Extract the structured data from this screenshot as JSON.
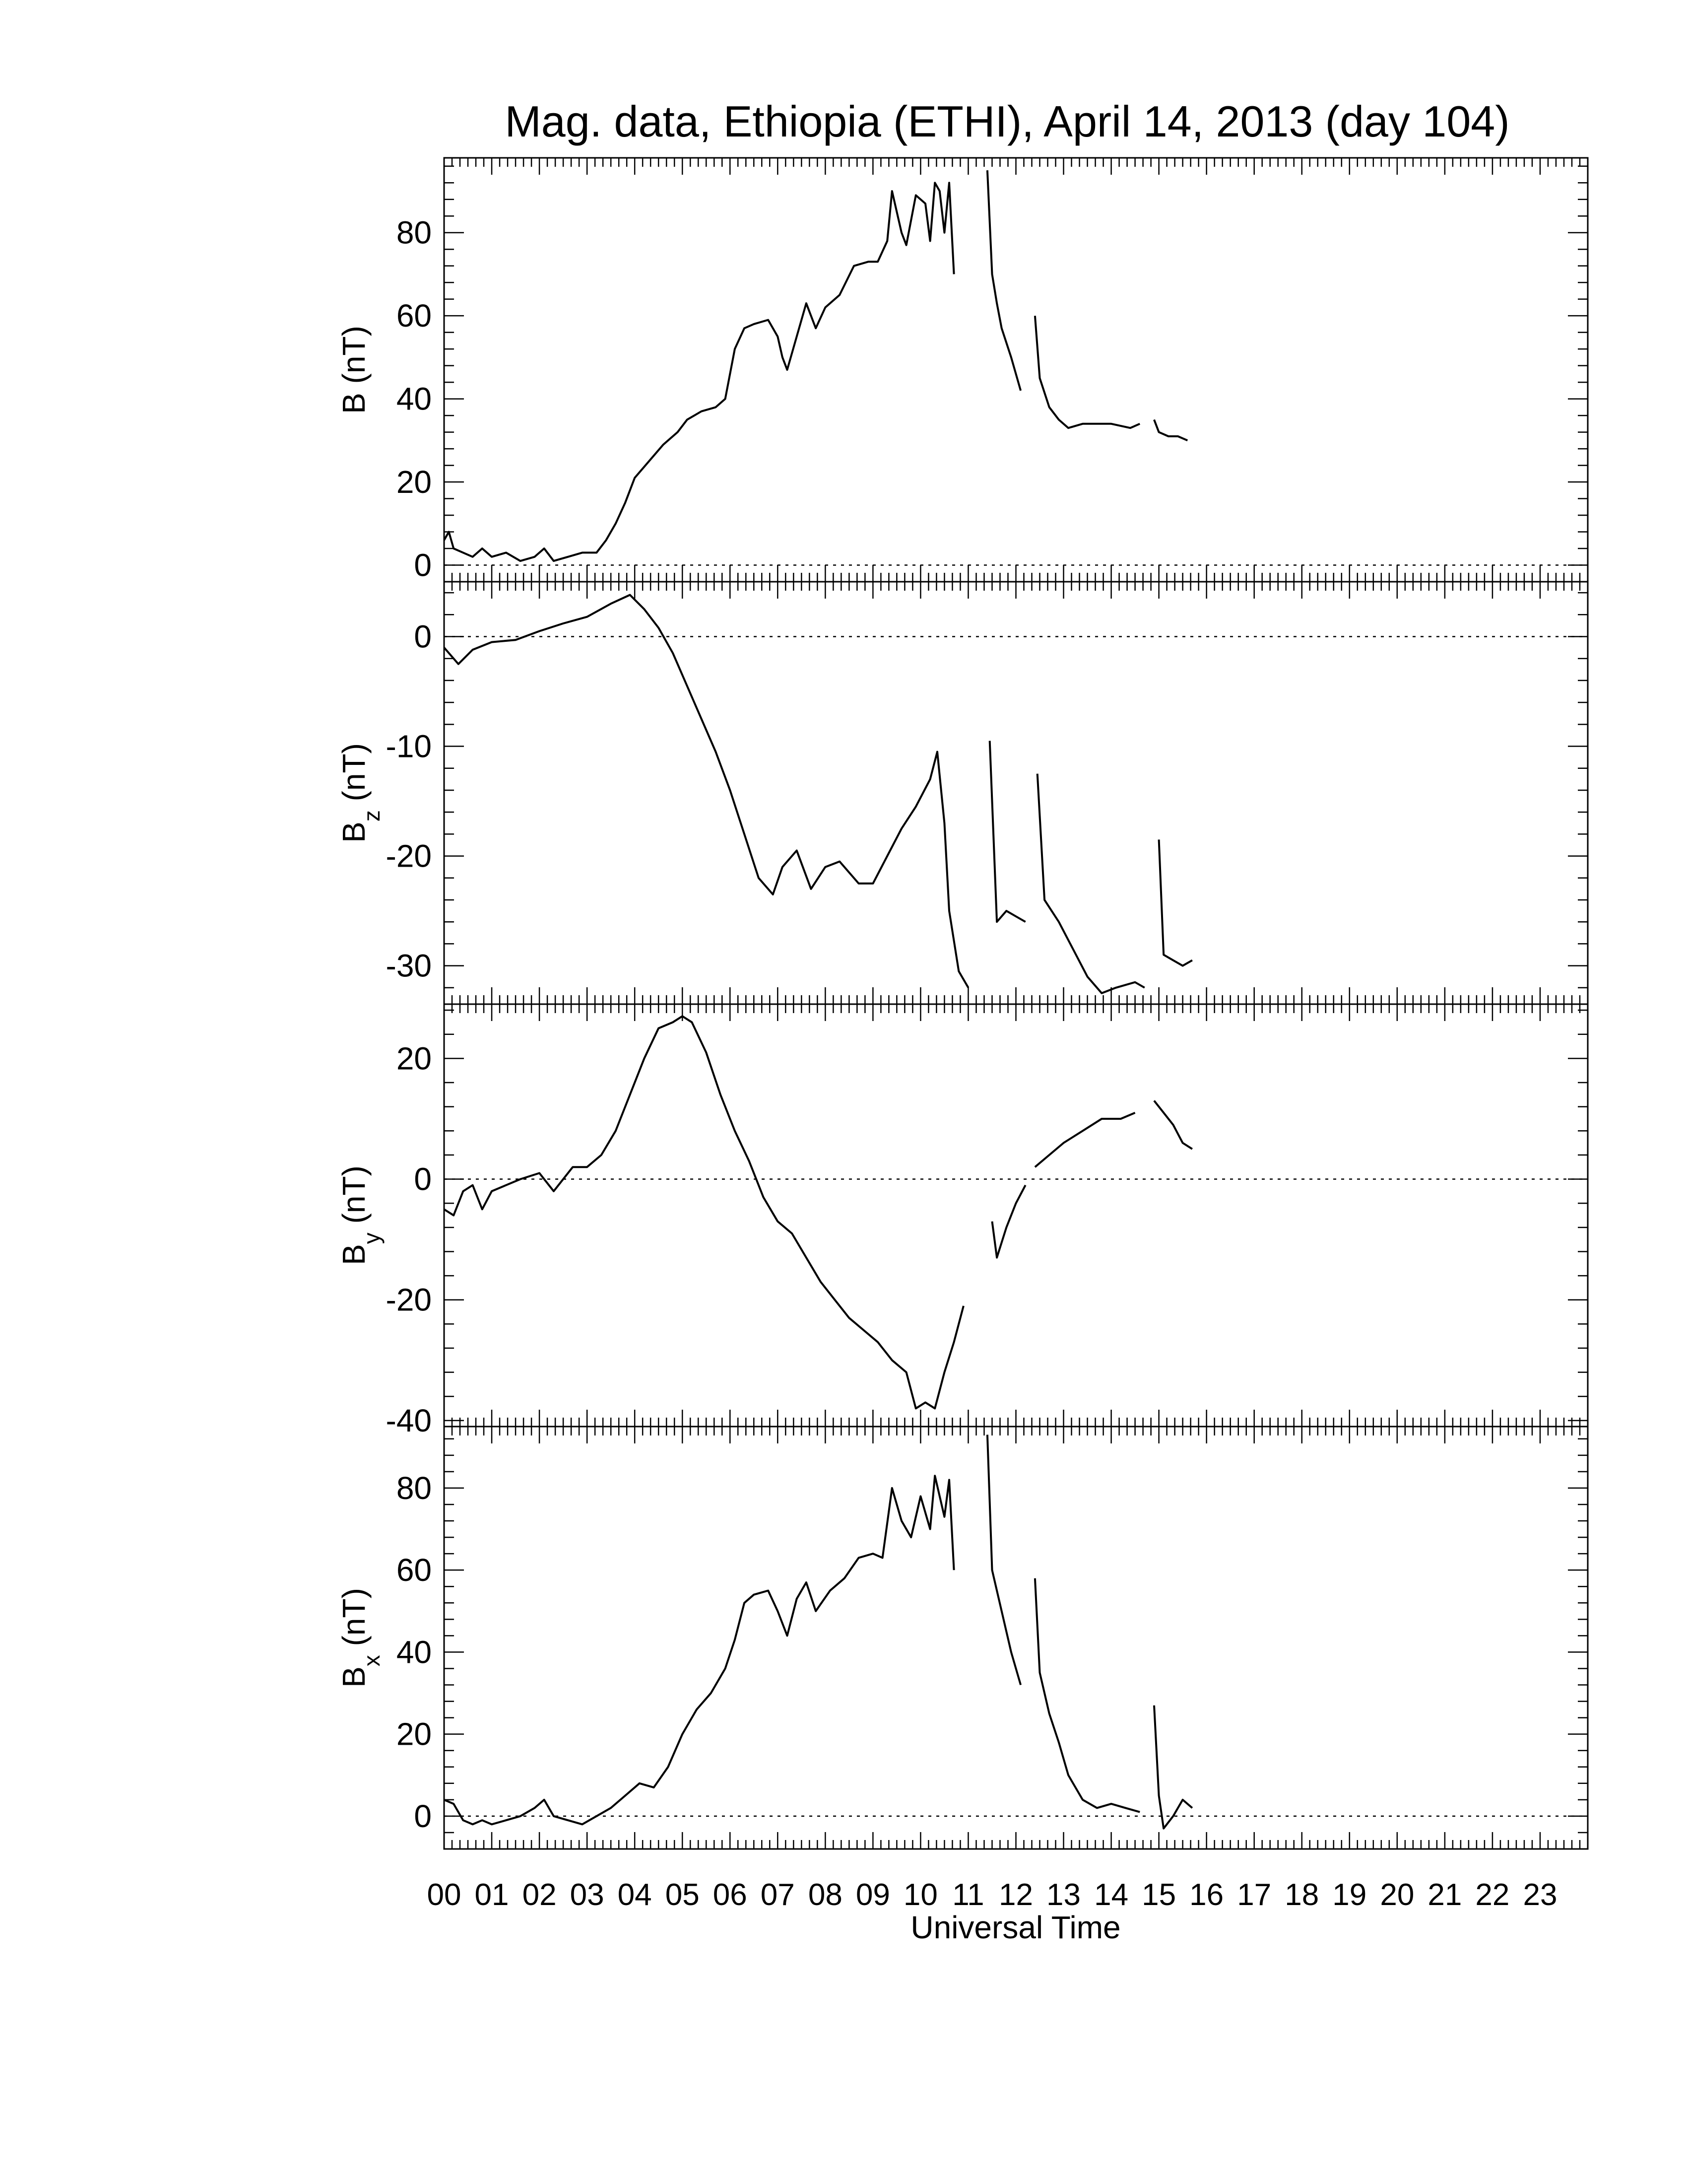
{
  "title": "Mag. data, Ethiopia (ETHI), April 14, 2013 (day 104)",
  "colors": {
    "line": "#000000",
    "zero_line": "#000000",
    "background": "#ffffff"
  },
  "chart_data": [
    {
      "type": "line",
      "panel": "B",
      "ylabel_main": "B",
      "ylabel_sub": "",
      "ylabel_unit": "(nT)",
      "ylim": [
        -4,
        98
      ],
      "yticks": [
        0,
        20,
        40,
        60,
        80
      ],
      "xlim": [
        0,
        24
      ],
      "zero_line": true,
      "segments": [
        [
          [
            0.0,
            6
          ],
          [
            0.1,
            8
          ],
          [
            0.2,
            4
          ],
          [
            0.4,
            3
          ],
          [
            0.6,
            2
          ],
          [
            0.8,
            4
          ],
          [
            1.0,
            2
          ],
          [
            1.3,
            3
          ],
          [
            1.6,
            1
          ],
          [
            1.9,
            2
          ],
          [
            2.1,
            4
          ],
          [
            2.3,
            1
          ],
          [
            2.6,
            2
          ],
          [
            2.9,
            3
          ],
          [
            3.2,
            3
          ],
          [
            3.4,
            6
          ],
          [
            3.6,
            10
          ],
          [
            3.8,
            15
          ],
          [
            4.0,
            21
          ],
          [
            4.3,
            25
          ],
          [
            4.6,
            29
          ],
          [
            4.9,
            32
          ],
          [
            5.1,
            35
          ],
          [
            5.4,
            37
          ],
          [
            5.7,
            38
          ],
          [
            5.9,
            40
          ],
          [
            6.1,
            52
          ],
          [
            6.3,
            57
          ],
          [
            6.5,
            58
          ],
          [
            6.8,
            59
          ],
          [
            7.0,
            55
          ],
          [
            7.1,
            50
          ],
          [
            7.2,
            47
          ],
          [
            7.4,
            55
          ],
          [
            7.6,
            63
          ],
          [
            7.8,
            57
          ],
          [
            8.0,
            62
          ],
          [
            8.3,
            65
          ],
          [
            8.6,
            72
          ],
          [
            8.9,
            73
          ],
          [
            9.1,
            73
          ],
          [
            9.3,
            78
          ],
          [
            9.4,
            90
          ],
          [
            9.6,
            80
          ],
          [
            9.7,
            77
          ],
          [
            9.9,
            89
          ],
          [
            10.1,
            87
          ],
          [
            10.2,
            78
          ],
          [
            10.3,
            92
          ],
          [
            10.4,
            90
          ],
          [
            10.5,
            80
          ],
          [
            10.6,
            92
          ],
          [
            10.7,
            70
          ]
        ],
        [
          [
            11.4,
            95
          ],
          [
            11.5,
            70
          ],
          [
            11.6,
            63
          ],
          [
            11.7,
            57
          ],
          [
            11.9,
            50
          ],
          [
            12.1,
            42
          ]
        ],
        [
          [
            12.4,
            60
          ],
          [
            12.5,
            45
          ],
          [
            12.7,
            38
          ],
          [
            12.9,
            35
          ],
          [
            13.1,
            33
          ],
          [
            13.4,
            34
          ],
          [
            13.7,
            34
          ],
          [
            14.0,
            34
          ],
          [
            14.4,
            33
          ],
          [
            14.6,
            34
          ]
        ],
        [
          [
            14.9,
            35
          ],
          [
            15.0,
            32
          ],
          [
            15.2,
            31
          ],
          [
            15.4,
            31
          ],
          [
            15.6,
            30
          ]
        ]
      ]
    },
    {
      "type": "line",
      "panel": "Bz",
      "ylabel_main": "B",
      "ylabel_sub": "z",
      "ylabel_unit": "(nT)",
      "ylim": [
        -33.5,
        5
      ],
      "yticks": [
        0,
        -10,
        -20,
        -30
      ],
      "xlim": [
        0,
        24
      ],
      "zero_line": true,
      "segments": [
        [
          [
            0.0,
            -1
          ],
          [
            0.3,
            -2.5
          ],
          [
            0.6,
            -1.2
          ],
          [
            1.0,
            -0.5
          ],
          [
            1.5,
            -0.3
          ],
          [
            2.0,
            0.5
          ],
          [
            2.5,
            1.2
          ],
          [
            3.0,
            1.8
          ],
          [
            3.5,
            3.0
          ],
          [
            3.9,
            3.8
          ],
          [
            4.2,
            2.5
          ],
          [
            4.5,
            0.8
          ],
          [
            4.8,
            -1.5
          ],
          [
            5.1,
            -4.5
          ],
          [
            5.4,
            -7.5
          ],
          [
            5.7,
            -10.5
          ],
          [
            6.0,
            -14
          ],
          [
            6.3,
            -18
          ],
          [
            6.6,
            -22
          ],
          [
            6.9,
            -23.5
          ],
          [
            7.1,
            -21
          ],
          [
            7.4,
            -19.5
          ],
          [
            7.7,
            -23
          ],
          [
            8.0,
            -21
          ],
          [
            8.3,
            -20.5
          ],
          [
            8.7,
            -22.5
          ],
          [
            9.0,
            -22.5
          ],
          [
            9.3,
            -20
          ],
          [
            9.6,
            -17.5
          ],
          [
            9.9,
            -15.5
          ],
          [
            10.2,
            -13
          ],
          [
            10.35,
            -10.5
          ],
          [
            10.5,
            -17
          ],
          [
            10.6,
            -25
          ],
          [
            10.8,
            -30.5
          ],
          [
            11.0,
            -32
          ]
        ],
        [
          [
            11.45,
            -9.5
          ],
          [
            11.6,
            -26
          ],
          [
            11.8,
            -25
          ],
          [
            12.0,
            -25.5
          ],
          [
            12.2,
            -26
          ]
        ],
        [
          [
            12.45,
            -12.5
          ],
          [
            12.6,
            -24
          ],
          [
            12.9,
            -26
          ],
          [
            13.2,
            -28.5
          ],
          [
            13.5,
            -31
          ],
          [
            13.8,
            -32.5
          ],
          [
            14.1,
            -32
          ],
          [
            14.5,
            -31.5
          ],
          [
            14.7,
            -32
          ]
        ],
        [
          [
            15.0,
            -18.5
          ],
          [
            15.1,
            -29
          ],
          [
            15.3,
            -29.5
          ],
          [
            15.5,
            -30
          ],
          [
            15.7,
            -29.5
          ]
        ]
      ]
    },
    {
      "type": "line",
      "panel": "By",
      "ylabel_main": "B",
      "ylabel_sub": "y",
      "ylabel_unit": "(nT)",
      "ylim": [
        -41,
        29
      ],
      "yticks": [
        20,
        0,
        -20,
        -40
      ],
      "xlim": [
        0,
        24
      ],
      "zero_line": true,
      "segments": [
        [
          [
            0.0,
            -5
          ],
          [
            0.2,
            -6
          ],
          [
            0.4,
            -2
          ],
          [
            0.6,
            -1
          ],
          [
            0.8,
            -5
          ],
          [
            1.0,
            -2
          ],
          [
            1.3,
            -1
          ],
          [
            1.6,
            0
          ],
          [
            2.0,
            1
          ],
          [
            2.3,
            -2
          ],
          [
            2.7,
            2
          ],
          [
            3.0,
            2
          ],
          [
            3.3,
            4
          ],
          [
            3.6,
            8
          ],
          [
            3.9,
            14
          ],
          [
            4.2,
            20
          ],
          [
            4.5,
            25
          ],
          [
            4.8,
            26
          ],
          [
            5.0,
            27
          ],
          [
            5.2,
            26
          ],
          [
            5.5,
            21
          ],
          [
            5.8,
            14
          ],
          [
            6.1,
            8
          ],
          [
            6.4,
            3
          ],
          [
            6.7,
            -3
          ],
          [
            7.0,
            -7
          ],
          [
            7.3,
            -9
          ],
          [
            7.6,
            -13
          ],
          [
            7.9,
            -17
          ],
          [
            8.2,
            -20
          ],
          [
            8.5,
            -23
          ],
          [
            8.8,
            -25
          ],
          [
            9.1,
            -27
          ],
          [
            9.4,
            -30
          ],
          [
            9.7,
            -32
          ],
          [
            9.9,
            -38
          ],
          [
            10.1,
            -37
          ],
          [
            10.3,
            -38
          ],
          [
            10.5,
            -32
          ],
          [
            10.7,
            -27
          ],
          [
            10.9,
            -21
          ]
        ],
        [
          [
            11.5,
            -7
          ],
          [
            11.6,
            -13
          ],
          [
            11.8,
            -8
          ],
          [
            12.0,
            -4
          ],
          [
            12.2,
            -1
          ]
        ],
        [
          [
            12.4,
            2
          ],
          [
            12.7,
            4
          ],
          [
            13.0,
            6
          ],
          [
            13.4,
            8
          ],
          [
            13.8,
            10
          ],
          [
            14.2,
            10
          ],
          [
            14.5,
            11
          ]
        ],
        [
          [
            14.9,
            13
          ],
          [
            15.1,
            11
          ],
          [
            15.3,
            9
          ],
          [
            15.5,
            6
          ],
          [
            15.7,
            5
          ]
        ]
      ]
    },
    {
      "type": "line",
      "panel": "Bx",
      "ylabel_main": "B",
      "ylabel_sub": "x",
      "ylabel_unit": "(nT)",
      "ylim": [
        -8,
        95
      ],
      "yticks": [
        0,
        20,
        40,
        60,
        80
      ],
      "xlim": [
        0,
        24
      ],
      "zero_line": true,
      "segments": [
        [
          [
            0.0,
            4
          ],
          [
            0.2,
            3
          ],
          [
            0.4,
            -1
          ],
          [
            0.6,
            -2
          ],
          [
            0.8,
            -1
          ],
          [
            1.0,
            -2
          ],
          [
            1.3,
            -1
          ],
          [
            1.6,
            0
          ],
          [
            1.9,
            2
          ],
          [
            2.1,
            4
          ],
          [
            2.3,
            0
          ],
          [
            2.6,
            -1
          ],
          [
            2.9,
            -2
          ],
          [
            3.2,
            0
          ],
          [
            3.5,
            2
          ],
          [
            3.8,
            5
          ],
          [
            4.1,
            8
          ],
          [
            4.4,
            7
          ],
          [
            4.7,
            12
          ],
          [
            5.0,
            20
          ],
          [
            5.3,
            26
          ],
          [
            5.6,
            30
          ],
          [
            5.9,
            36
          ],
          [
            6.1,
            43
          ],
          [
            6.3,
            52
          ],
          [
            6.5,
            54
          ],
          [
            6.8,
            55
          ],
          [
            7.0,
            50
          ],
          [
            7.2,
            44
          ],
          [
            7.4,
            53
          ],
          [
            7.6,
            57
          ],
          [
            7.8,
            50
          ],
          [
            8.1,
            55
          ],
          [
            8.4,
            58
          ],
          [
            8.7,
            63
          ],
          [
            9.0,
            64
          ],
          [
            9.2,
            63
          ],
          [
            9.4,
            80
          ],
          [
            9.6,
            72
          ],
          [
            9.8,
            68
          ],
          [
            10.0,
            78
          ],
          [
            10.2,
            70
          ],
          [
            10.3,
            83
          ],
          [
            10.5,
            73
          ],
          [
            10.6,
            82
          ],
          [
            10.7,
            60
          ]
        ],
        [
          [
            11.4,
            93
          ],
          [
            11.5,
            60
          ],
          [
            11.7,
            50
          ],
          [
            11.9,
            40
          ],
          [
            12.1,
            32
          ]
        ],
        [
          [
            12.4,
            58
          ],
          [
            12.5,
            35
          ],
          [
            12.7,
            25
          ],
          [
            12.9,
            18
          ],
          [
            13.1,
            10
          ],
          [
            13.4,
            4
          ],
          [
            13.7,
            2
          ],
          [
            14.0,
            3
          ],
          [
            14.3,
            2
          ],
          [
            14.6,
            1
          ]
        ],
        [
          [
            14.9,
            27
          ],
          [
            15.0,
            5
          ],
          [
            15.1,
            -3
          ],
          [
            15.3,
            0
          ],
          [
            15.5,
            4
          ],
          [
            15.7,
            2
          ]
        ]
      ]
    }
  ],
  "x_axis": {
    "ticks": [
      "00",
      "01",
      "02",
      "03",
      "04",
      "05",
      "06",
      "07",
      "08",
      "09",
      "10",
      "11",
      "12",
      "13",
      "14",
      "15",
      "16",
      "17",
      "18",
      "19",
      "20",
      "21",
      "22",
      "23"
    ],
    "xlabel": "Universal Time"
  }
}
